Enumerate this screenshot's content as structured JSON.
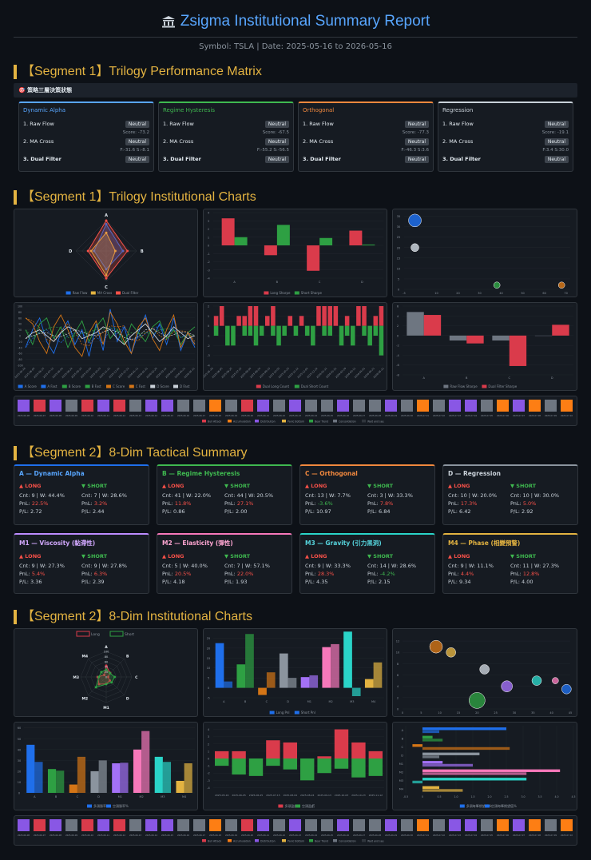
{
  "header": {
    "title": "Zsigma Institutional Summary Report",
    "subtitle": "Symbol: TSLA | Date: 2025-05-16 to 2026-05-16",
    "icon": "bank-building-icon"
  },
  "seg1a": "【Segment 1】Trilogy Performance Matrix",
  "matrix_header": "🎯 策略三層決策狀態",
  "matrix": [
    {
      "name": "Dynamic Alpha",
      "color": "#58a6ff",
      "r1": "1. Raw Flow",
      "r2": "2. MA Cross",
      "r3": "3. Dual Filter",
      "b1": "Neutral",
      "b2": "Neutral",
      "b3": "Neutral",
      "n1": "Score: -73.2",
      "n2": "F:-31.6 S:-8.1"
    },
    {
      "name": "Regime Hysteresis",
      "color": "#3fb950",
      "r1": "1. Raw Flow",
      "r2": "2. MA Cross",
      "r3": "3. Dual Filter",
      "b1": "Neutral",
      "b2": "Neutral",
      "b3": "Neutral",
      "n1": "Score: -67.5",
      "n2": "F:-55.2 S:-56.5"
    },
    {
      "name": "Orthogonal",
      "color": "#f0883e",
      "r1": "1. Raw Flow",
      "r2": "2. MA Cross",
      "r3": "3. Dual Filter",
      "b1": "Neutral",
      "b2": "Neutral",
      "b3": "Neutral",
      "n1": "Score: -77.3",
      "n2": "F:-46.3 S:3.6"
    },
    {
      "name": "Regression",
      "color": "#c9d1d9",
      "r1": "1. Raw Flow",
      "r2": "2. MA Cross",
      "r3": "3. Dual Filter",
      "b1": "Neutral",
      "b2": "Neutral",
      "b3": "Neutral",
      "n1": "Score: -19.1",
      "n2": "F:3.4 S:30.0"
    }
  ],
  "seg1b": "【Segment 1】Trilogy Institutional Charts",
  "seg2a": "【Segment 2】8-Dim Tactical Summary",
  "seg2b": "【Segment 2】8-Dim Institutional Charts",
  "labels": {
    "long": "▲ LONG",
    "short": "▼ SHORT",
    "cnt": "Cnt:",
    "w": "| W:",
    "pnl": "PnL:",
    "pl": "P/L:"
  },
  "dims": [
    {
      "name": "A — Dynamic Alpha",
      "color": "#1f6feb",
      "tcolor": "#58a6ff",
      "L": {
        "cnt": "9",
        "w": "44.4%",
        "pnl": "22.5%",
        "pl": "2.72"
      },
      "S": {
        "cnt": "7",
        "w": "28.6%",
        "pnl": "3.2%",
        "pl": "2.44"
      }
    },
    {
      "name": "B — Regime Hysteresis",
      "color": "#3fb950",
      "tcolor": "#3fb950",
      "L": {
        "cnt": "41",
        "w": "22.0%",
        "pnl": "11.8%",
        "pl": "0.86"
      },
      "S": {
        "cnt": "44",
        "w": "20.5%",
        "pnl": "27.1%",
        "pl": "2.00"
      }
    },
    {
      "name": "C — Orthogonal",
      "color": "#f0883e",
      "tcolor": "#f0883e",
      "L": {
        "cnt": "13",
        "w": "7.7%",
        "pnl": "-3.6%",
        "pl": "10.97"
      },
      "S": {
        "cnt": "3",
        "w": "33.3%",
        "pnl": "7.8%",
        "pl": "6.84"
      }
    },
    {
      "name": "D — Regression",
      "color": "#8b949e",
      "tcolor": "#c9d1d9",
      "L": {
        "cnt": "10",
        "w": "20.0%",
        "pnl": "17.3%",
        "pl": "6.42"
      },
      "S": {
        "cnt": "10",
        "w": "30.0%",
        "pnl": "5.0%",
        "pl": "2.92"
      }
    },
    {
      "name": "M1 — Viscosity (黏滯性)",
      "color": "#bc8cff",
      "tcolor": "#d2a8ff",
      "L": {
        "cnt": "9",
        "w": "27.3%",
        "pnl": "5.4%",
        "pl": "3.36"
      },
      "S": {
        "cnt": "9",
        "w": "27.8%",
        "pnl": "6.3%",
        "pl": "2.39"
      }
    },
    {
      "name": "M2 — Elasticity (彈性)",
      "color": "#f778ba",
      "tcolor": "#ffa6d2",
      "L": {
        "cnt": "5",
        "w": "40.0%",
        "pnl": "20.5%",
        "pl": "4.18"
      },
      "S": {
        "cnt": "7",
        "w": "57.1%",
        "pnl": "22.0%",
        "pl": "1.93"
      }
    },
    {
      "name": "M3 — Gravity (引力黑洞)",
      "color": "#2ad4c8",
      "tcolor": "#56d4dd",
      "L": {
        "cnt": "9",
        "w": "33.3%",
        "pnl": "28.3%",
        "pl": "4.35"
      },
      "S": {
        "cnt": "14",
        "w": "28.6%",
        "pnl": "-4.2%",
        "pl": "2.15"
      }
    },
    {
      "name": "M4 — Phase (相變預警)",
      "color": "#e3b341",
      "tcolor": "#e3b341",
      "L": {
        "cnt": "9",
        "w": "11.1%",
        "pnl": "4.4%",
        "pl": "9.34"
      },
      "S": {
        "cnt": "11",
        "w": "27.3%",
        "pnl": "12.8%",
        "pl": "4.00"
      }
    }
  ],
  "chart_data": [
    {
      "type": "radar",
      "axes": [
        "A",
        "B",
        "C",
        "D"
      ],
      "legend": [
        "Raw Flow",
        "MA Cross",
        "Dual Filter"
      ],
      "series": [
        {
          "name": "Raw Flow",
          "color": "#1f6feb",
          "values": [
            88,
            55,
            60,
            40
          ]
        },
        {
          "name": "MA Cross",
          "color": "#e3b341",
          "values": [
            60,
            30,
            80,
            50
          ]
        },
        {
          "name": "Dual Filter",
          "color": "#f85149",
          "values": [
            100,
            70,
            90,
            60
          ]
        }
      ]
    },
    {
      "type": "bar",
      "categories": [
        "A",
        "B",
        "C",
        "D"
      ],
      "legend": [
        "Long Sharpe",
        "Short Sharpe"
      ],
      "yticks": [
        "4",
        "3",
        "2",
        "1",
        "0",
        "-1",
        "-2",
        "-3",
        "-4"
      ],
      "ylim": [
        -4,
        4
      ],
      "series": [
        {
          "name": "Long Sharpe",
          "color": "#da3b4b",
          "values": [
            3.3,
            -1.2,
            -3.1,
            1.8
          ]
        },
        {
          "name": "Short Sharpe",
          "color": "#2ea043",
          "values": [
            1.0,
            2.5,
            0.9,
            0.1
          ]
        }
      ]
    },
    {
      "type": "scatter",
      "yticks": [
        "35",
        "30",
        "25",
        "20",
        "15",
        "10",
        "5",
        "0"
      ],
      "xticks": [
        "-5",
        "10",
        "20",
        "30",
        "40",
        "50",
        "60",
        "70"
      ],
      "ylim": [
        0,
        36
      ],
      "xlim": [
        -5,
        72
      ],
      "points": [
        {
          "x": 0,
          "y": 33,
          "r": 8,
          "color": "#1f6feb"
        },
        {
          "x": 0,
          "y": 20,
          "r": 5,
          "color": "#c9d1d9"
        },
        {
          "x": 38,
          "y": 2,
          "r": 4,
          "color": "#2ea043"
        },
        {
          "x": 68,
          "y": 2,
          "r": 4,
          "color": "#d47516"
        }
      ]
    },
    {
      "type": "line",
      "yticks": [
        "100",
        "80",
        "60",
        "40",
        "20",
        "0",
        "-20",
        "-40",
        "-60",
        "-80",
        "-100"
      ],
      "ylim": [
        -100,
        100
      ],
      "legend": [
        "A Score",
        "A Fast",
        "B Score",
        "B Fast",
        "C Score",
        "C Fast",
        "D Score",
        "D Fast"
      ],
      "series": [
        {
          "name": "A Score",
          "color": "#1f6feb",
          "values": [
            -40,
            20,
            60,
            -20,
            -60,
            10,
            50,
            -30,
            20,
            -70,
            40,
            -50,
            90,
            -20,
            30,
            -60,
            10,
            70,
            -10,
            40,
            -30,
            60,
            -50,
            10,
            -40
          ]
        },
        {
          "name": "B Score",
          "color": "#2ea043",
          "values": [
            20,
            -30,
            40,
            60,
            -10,
            30,
            -40,
            10,
            50,
            -20,
            30,
            60,
            -10,
            20,
            -30,
            40,
            10,
            -20,
            30,
            50,
            -10,
            20,
            -30,
            10,
            30
          ]
        },
        {
          "name": "C Score",
          "color": "#d47516",
          "values": [
            60,
            40,
            -20,
            -60,
            30,
            70,
            20,
            -40,
            -70,
            10,
            50,
            -30,
            80,
            40,
            -20,
            -60,
            30,
            60,
            -10,
            -50,
            20,
            70,
            -40,
            10,
            -30
          ]
        },
        {
          "name": "D Score",
          "color": "#c9d1d9",
          "values": [
            -10,
            10,
            20,
            0,
            -20,
            10,
            30,
            20,
            -10,
            0,
            10,
            30,
            20,
            -10,
            -30,
            0,
            20,
            40,
            10,
            -20,
            0,
            30,
            10,
            -10,
            0
          ]
        }
      ],
      "xticks": [
        "2025-05-16",
        "2025-06-05",
        "2025-06-25",
        "2025-07-15",
        "2025-08-04",
        "2025-08-24",
        "2025-09-13",
        "2025-10-03",
        "2025-10-23",
        "2025-11-12",
        "2025-12-02",
        "2025-12-22",
        "2026-01-11",
        "2026-01-31",
        "2026-02-20",
        "2026-03-12",
        "2026-04-01",
        "2026-04-21",
        "2026-05-11"
      ]
    },
    {
      "type": "bar",
      "legend": [
        "Dual Long Count",
        "Dual Short Count"
      ],
      "yticks": [
        "2",
        "1",
        "0",
        "-1",
        "-2",
        "-3",
        "-4"
      ],
      "ylim": [
        -4,
        2
      ],
      "long": [
        1,
        2,
        0,
        0,
        1,
        1,
        2,
        2,
        0,
        1,
        2,
        0,
        0,
        1,
        0,
        1,
        0,
        0,
        2,
        2,
        2,
        2,
        0,
        1,
        0,
        2,
        2,
        0,
        1,
        2
      ],
      "short": [
        -1,
        0,
        -2,
        -2,
        0,
        -1,
        -1,
        -2,
        -1,
        0,
        -1,
        -2,
        -1,
        0,
        -1,
        0,
        -1,
        -2,
        0,
        -1,
        -1,
        0,
        -2,
        -1,
        -2,
        0,
        -1,
        -2,
        -1,
        -3
      ]
    },
    {
      "type": "bar",
      "categories": [
        "A",
        "B",
        "C",
        "D"
      ],
      "legend": [
        "Raw Flow Sharpe",
        "Dual Filter Sharpe"
      ],
      "yticks": [
        "6",
        "4",
        "2",
        "0",
        "-2",
        "-4",
        "-6",
        "-8"
      ],
      "ylim": [
        -8,
        6
      ],
      "series": [
        {
          "name": "Raw Flow Sharpe",
          "color": "#6e7681",
          "values": [
            4.8,
            -1.0,
            -1.0,
            0
          ]
        },
        {
          "name": "Dual Filter Sharpe",
          "color": "#da3b4b",
          "values": [
            4.2,
            -1.6,
            -6.2,
            2.2
          ]
        }
      ]
    },
    {
      "type": "radar",
      "axes": [
        "A",
        "B",
        "C",
        "D",
        "M1",
        "M2",
        "M3",
        "M4"
      ],
      "legend": [
        "Long",
        "Short"
      ],
      "rings": [
        "100",
        "80",
        "60",
        "40",
        "20",
        "0"
      ],
      "series": [
        {
          "name": "Long",
          "color": "#da3b4b",
          "values": [
            44,
            22,
            8,
            20,
            27,
            40,
            33,
            11
          ]
        },
        {
          "name": "Short",
          "color": "#2ea043",
          "values": [
            29,
            21,
            33,
            30,
            28,
            57,
            29,
            27
          ]
        }
      ]
    },
    {
      "type": "bar",
      "categories": [
        "A",
        "B",
        "C",
        "D",
        "M1",
        "M2",
        "M3",
        "M4"
      ],
      "legend": [
        "Long Pnl",
        "Short Pnl"
      ],
      "yticks": [
        "25",
        "20",
        "15",
        "10",
        "5",
        "0",
        "-5"
      ],
      "ylim": [
        -5,
        28
      ],
      "series": [
        {
          "name": "Long Pnl",
          "color": "#1f6feb",
          "values": [
            22.5,
            11.8,
            -3.6,
            17.3,
            5.4,
            20.5,
            28.3,
            4.4
          ]
        },
        {
          "name": "Short Pnl",
          "color": "#2ea043",
          "values": [
            3.2,
            27.1,
            7.8,
            5.0,
            6.3,
            22.0,
            -4.2,
            12.8
          ]
        }
      ]
    },
    {
      "type": "scatter",
      "yticks": [
        "12",
        "10",
        "8",
        "6",
        "4",
        "2",
        "0"
      ],
      "xticks": [
        "0",
        "5",
        "10",
        "15",
        "20",
        "25",
        "30",
        "35",
        "40",
        "45"
      ],
      "xlim": [
        0,
        45
      ],
      "ylim": [
        0,
        13
      ],
      "points": [
        {
          "x": 9,
          "y": 11,
          "r": 8,
          "color": "#d47516"
        },
        {
          "x": 13,
          "y": 10,
          "r": 6,
          "color": "#e3b341"
        },
        {
          "x": 22,
          "y": 7,
          "r": 6,
          "color": "#c9d1d9"
        },
        {
          "x": 20,
          "y": 1.5,
          "r": 10,
          "color": "#2ea043"
        },
        {
          "x": 28,
          "y": 4,
          "r": 7,
          "color": "#a371f7"
        },
        {
          "x": 36,
          "y": 5,
          "r": 6,
          "color": "#2ad4c8"
        },
        {
          "x": 41,
          "y": 5,
          "r": 4,
          "color": "#f778ba"
        },
        {
          "x": 44,
          "y": 3.5,
          "r": 6,
          "color": "#1f6feb"
        }
      ]
    },
    {
      "type": "bar",
      "categories": [
        "A",
        "B",
        "C",
        "D",
        "M1",
        "M2",
        "M3",
        "M4"
      ],
      "legend": [
        "多頭勝率%",
        "空頭勝率%"
      ],
      "yticks": [
        "60",
        "50",
        "40",
        "30",
        "20",
        "10",
        "0"
      ],
      "ylim": [
        0,
        62
      ],
      "colors": [
        "#1f6feb",
        "#2ea043",
        "#d47516",
        "#8b949e",
        "#a371f7",
        "#f778ba",
        "#2ad4c8",
        "#e3b341"
      ],
      "series": [
        {
          "name": "Long",
          "values": [
            44.4,
            22.0,
            7.7,
            20.0,
            27.3,
            40.0,
            33.3,
            11.1
          ]
        },
        {
          "name": "Short",
          "values": [
            28.6,
            20.5,
            33.3,
            30.0,
            27.8,
            57.1,
            28.6,
            27.3
          ]
        }
      ]
    },
    {
      "type": "bar",
      "legend": [
        "多頭盈虧",
        "空頭盈虧"
      ],
      "yticks": [
        "4",
        "3",
        "2",
        "1",
        "0",
        "-1",
        "-2",
        "-3",
        "-4"
      ],
      "ylim": [
        -4.5,
        4.5
      ],
      "long": [
        1,
        1,
        0,
        2.5,
        2.2,
        0,
        0.3,
        4,
        2.2,
        1
      ],
      "short": [
        -1,
        -2.2,
        -2.4,
        -1,
        -1.5,
        -3,
        -2,
        -1.4,
        -2.6,
        -2.4
      ]
    },
    {
      "type": "hbar",
      "categories": [
        "A",
        "B",
        "C",
        "D",
        "M1",
        "M2",
        "M3",
        "M4"
      ],
      "legend": [
        "多頭每筆期望值%",
        "空頭每筆期望值%"
      ],
      "xticks": [
        "-0.5",
        "0",
        "0.5",
        "1.0",
        "1.5",
        "2.0",
        "2.5",
        "3.0",
        "3.5",
        "4.0",
        "4.5"
      ],
      "xlim": [
        -0.5,
        4.5
      ],
      "colors": [
        "#1f6feb",
        "#2ea043",
        "#d47516",
        "#8b949e",
        "#a371f7",
        "#f778ba",
        "#2ad4c8",
        "#e3b341"
      ],
      "long": [
        2.5,
        0.3,
        -0.3,
        1.7,
        0.6,
        4.1,
        3.1,
        0.5
      ],
      "short": [
        0.5,
        0.6,
        2.6,
        0.5,
        1.5,
        3.1,
        -0.3,
        1.2
      ]
    }
  ],
  "strip_dates": [
    "2025-06-08",
    "2025-06-07",
    "2025-06-08",
    "2025-06-09",
    "2025-06-10",
    "2025-06-11",
    "2025-06-12",
    "2025-06-13",
    "2025-06-14",
    "2025-06-15",
    "2025-06-16",
    "2025-06-17",
    "2025-06-18",
    "2025-06-19",
    "2025-06-20",
    "2025-06-21",
    "2025-06-22",
    "2025-06-23",
    "2025-06-24",
    "2025-06-25",
    "2025-06-26",
    "2025-06-27",
    "2025-06-28",
    "2025-06-29",
    "2025-06-30",
    "2025-07-01",
    "2025-07-02",
    "2025-07-03",
    "2025-07-04",
    "2025-07-05",
    "2025-07-06",
    "2025-07-07",
    "2025-07-08",
    "2025-07-09",
    "2025-07-10"
  ],
  "strip_colors": [
    "#8957e5",
    "#da3b4b",
    "#8957e5",
    "#6e7681",
    "#da3b4b",
    "#8957e5",
    "#da3b4b",
    "#6e7681",
    "#8957e5",
    "#8957e5",
    "#6e7681",
    "#6e7681",
    "#fd7e14",
    "#6e7681",
    "#da3b4b",
    "#8957e5",
    "#6e7681",
    "#8957e5",
    "#6e7681",
    "#6e7681",
    "#8957e5",
    "#6e7681",
    "#6e7681",
    "#8957e5",
    "#6e7681",
    "#fd7e14",
    "#6e7681",
    "#8957e5",
    "#8957e5",
    "#6e7681",
    "#fd7e14",
    "#8957e5",
    "#fd7e14",
    "#6e7681",
    "#fd7e14"
  ],
  "strip_legend": [
    "Bull Attack",
    "Accumulation",
    "Distribution",
    "Panic Bottom",
    "Bear Trend",
    "Consolidation",
    "Wait and see"
  ],
  "strip_legend_colors": [
    "#da3b4b",
    "#fd7e14",
    "#8957e5",
    "#e3b341",
    "#2ea043",
    "#6e7681",
    "#30363d"
  ]
}
